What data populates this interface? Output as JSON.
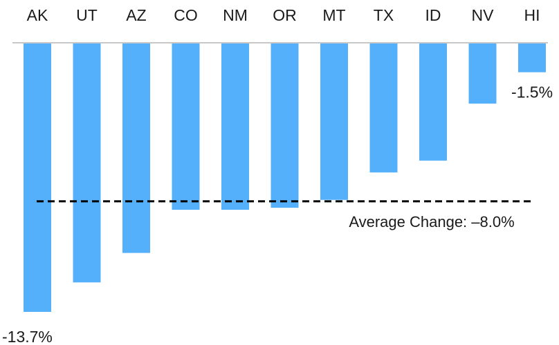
{
  "chart_data": {
    "type": "bar",
    "orientation": "vertical-negative",
    "categories": [
      "AK",
      "UT",
      "AZ",
      "CO",
      "NM",
      "OR",
      "MT",
      "TX",
      "ID",
      "NV",
      "HI"
    ],
    "series": [
      {
        "values": [
          -13.7,
          -12.2,
          -10.7,
          -8.5,
          -8.5,
          -8.4,
          -8.0,
          -6.6,
          -6.0,
          -3.1,
          -1.5
        ]
      }
    ],
    "units": "%",
    "data_labels": [
      {
        "category": "AK",
        "text": "-13.7%"
      },
      {
        "category": "HI",
        "text": "-1.5%"
      }
    ],
    "reference_line": {
      "value": -8.0,
      "label": "Average Change: –8.0%",
      "style": "dashed"
    },
    "ylim": [
      -13.7,
      0
    ],
    "category_labels_position": "top",
    "grid": false,
    "colors": {
      "bar": "#55b0fc",
      "axis": "#c8c8c8",
      "reference_line": "#000000",
      "text": "#1a1a1a"
    }
  }
}
